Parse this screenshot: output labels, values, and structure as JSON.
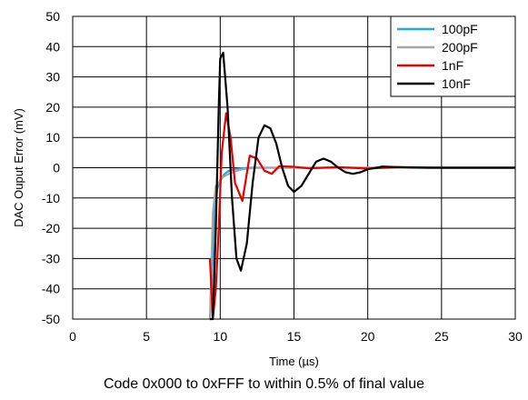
{
  "chart_data": {
    "type": "line",
    "xlabel": "Time (µs)",
    "ylabel": "DAC Ouput Error (mV)",
    "xlim": [
      0,
      30
    ],
    "ylim": [
      -50,
      50
    ],
    "xticks": [
      "0",
      "5",
      "10",
      "15",
      "20",
      "25",
      "30"
    ],
    "yticks": [
      "50",
      "40",
      "30",
      "20",
      "10",
      "0",
      "-10",
      "-20",
      "-30",
      "-40",
      "-50"
    ],
    "grid": true,
    "legend_placement": "top-right",
    "series": [
      {
        "name": "100pF",
        "color": "#1eaadc",
        "x": [
          9.3,
          9.5,
          9.6,
          9.8,
          10.0,
          10.3,
          10.6,
          11.0,
          12.0,
          14.0,
          20.0,
          30.0
        ],
        "y": [
          -50,
          -30,
          -15,
          -7,
          -4,
          -2,
          -1,
          -0.4,
          0,
          0,
          0,
          0
        ]
      },
      {
        "name": "200pF",
        "color": "#a6a6a6",
        "x": [
          9.3,
          9.5,
          9.7,
          9.9,
          10.2,
          10.6,
          11.0,
          11.5,
          12.5,
          14.0,
          20.0,
          30.0
        ],
        "y": [
          -50,
          -15,
          -6,
          -5,
          -3,
          -2,
          -1.2,
          -0.5,
          0,
          0,
          0,
          0
        ]
      },
      {
        "name": "1nF",
        "color": "#e60000",
        "x": [
          9.3,
          9.5,
          9.7,
          9.9,
          10.1,
          10.4,
          10.7,
          11.0,
          11.5,
          12.0,
          12.5,
          13.0,
          13.5,
          14.0,
          15.0,
          16.0,
          18.0,
          20.0,
          22.0,
          25.0,
          30.0
        ],
        "y": [
          -30,
          -50,
          -40,
          -20,
          5,
          18,
          10,
          -5,
          -11,
          4,
          3,
          -1,
          -2,
          0.5,
          0.3,
          -0.2,
          0.2,
          -0.3,
          0.2,
          0,
          0
        ]
      },
      {
        "name": "10nF",
        "color": "#000000",
        "x": [
          9.3,
          9.5,
          9.7,
          9.9,
          10.0,
          10.2,
          10.5,
          10.8,
          11.1,
          11.4,
          11.8,
          12.2,
          12.6,
          13.0,
          13.4,
          13.8,
          14.2,
          14.6,
          15.0,
          15.5,
          16.0,
          16.5,
          17.0,
          17.5,
          18.0,
          18.5,
          19.0,
          19.5,
          20.0,
          21.0,
          22.0,
          24.0,
          27.0,
          30.0
        ],
        "y": [
          -50,
          -50,
          -20,
          20,
          36,
          38,
          20,
          -10,
          -30,
          -34,
          -25,
          -5,
          10,
          14,
          13,
          8,
          0,
          -6,
          -8,
          -6,
          -2,
          2,
          3,
          2,
          0,
          -1.5,
          -2,
          -1.5,
          -0.5,
          0.4,
          0.2,
          0,
          0,
          0
        ]
      }
    ],
    "caption": "Code 0x000 to 0xFFF to within 0.5% of final value"
  }
}
